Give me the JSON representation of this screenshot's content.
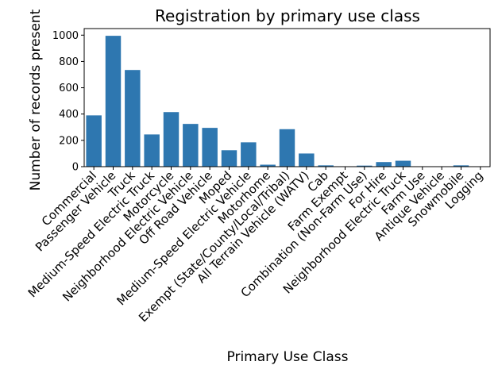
{
  "chart_data": {
    "type": "bar",
    "title": "Registration by primary use class",
    "xlabel": "Primary Use Class",
    "ylabel": "Number of records present",
    "ylim": [
      0,
      1050
    ],
    "yticks": [
      0,
      200,
      400,
      600,
      800,
      1000
    ],
    "grid": false,
    "bar_color": "#2e77b0",
    "categories": [
      "Commercial",
      "Passenger Vehicle",
      "Truck",
      "Medium-Speed Electric Truck",
      "Motorcycle",
      "Neighborhood Electric Vehicle",
      "Off Road Vehicle",
      "Moped",
      "Medium-Speed Electric Vehicle",
      "Motorhome",
      "Exempt (State/County/Local/Tribal)",
      "All Terrain Vehicle (WATV)",
      "Cab",
      "Farm Exempt",
      "Combination (Non-Farm Use)",
      "For Hire",
      "Neighborhood Electric Truck",
      "Farm Use",
      "Antique Vehicle",
      "Snowmobile",
      "Logging"
    ],
    "values": [
      390,
      995,
      735,
      245,
      415,
      325,
      295,
      125,
      185,
      15,
      285,
      100,
      10,
      3,
      8,
      35,
      45,
      0,
      3,
      10,
      3
    ]
  }
}
